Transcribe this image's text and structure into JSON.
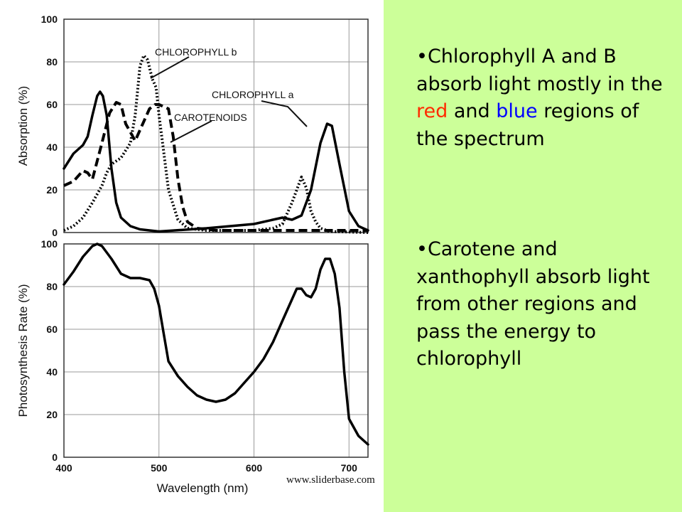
{
  "slide": {
    "bullets": [
      {
        "marker": "•",
        "parts": [
          {
            "text": "Chlorophyll A and B absorb light mostly in the ",
            "color": "#000000"
          },
          {
            "text": "red",
            "color": "#ff2a00"
          },
          {
            "text": " and ",
            "color": "#000000"
          },
          {
            "text": "blue",
            "color": "#0000ff"
          },
          {
            "text": " regions of the spectrum",
            "color": "#000000"
          }
        ]
      },
      {
        "marker": "•",
        "parts": [
          {
            "text": "Carotene and xanthophyll absorb light from other regions and pass the energy to chlorophyll",
            "color": "#000000"
          }
        ]
      }
    ],
    "footer": "www.sliderbase.com",
    "panel_color": "#ccff99"
  },
  "chart_data": [
    {
      "type": "line",
      "title": "",
      "xlabel": "",
      "ylabel": "Absorption (%)",
      "xlim": [
        400,
        720
      ],
      "ylim": [
        0,
        100
      ],
      "xticks": [],
      "yticks": [
        0,
        20,
        40,
        60,
        80,
        100
      ],
      "grid": true,
      "legend": "none",
      "series": [
        {
          "name": "CHLOROPHYLL a",
          "style": "solid",
          "points": [
            [
              400,
              30
            ],
            [
              410,
              37
            ],
            [
              420,
              41
            ],
            [
              425,
              45
            ],
            [
              430,
              55
            ],
            [
              435,
              64
            ],
            [
              438,
              66
            ],
            [
              441,
              64
            ],
            [
              445,
              55
            ],
            [
              450,
              30
            ],
            [
              455,
              14
            ],
            [
              460,
              7
            ],
            [
              470,
              3
            ],
            [
              480,
              1.5
            ],
            [
              500,
              0.5
            ],
            [
              550,
              2
            ],
            [
              600,
              4
            ],
            [
              630,
              7
            ],
            [
              640,
              6
            ],
            [
              650,
              8
            ],
            [
              660,
              20
            ],
            [
              670,
              42
            ],
            [
              677,
              51
            ],
            [
              682,
              50
            ],
            [
              690,
              32
            ],
            [
              700,
              10
            ],
            [
              710,
              3
            ],
            [
              720,
              1
            ]
          ]
        },
        {
          "name": "CHLOROPHYLL b",
          "style": "dotted",
          "points": [
            [
              400,
              1
            ],
            [
              410,
              3
            ],
            [
              420,
              7
            ],
            [
              430,
              14
            ],
            [
              440,
              22
            ],
            [
              445,
              28
            ],
            [
              450,
              32
            ],
            [
              460,
              35
            ],
            [
              470,
              42
            ],
            [
              475,
              55
            ],
            [
              480,
              78
            ],
            [
              484,
              83
            ],
            [
              488,
              81
            ],
            [
              493,
              72
            ],
            [
              497,
              68
            ],
            [
              500,
              55
            ],
            [
              505,
              38
            ],
            [
              510,
              20
            ],
            [
              520,
              6
            ],
            [
              530,
              2
            ],
            [
              550,
              1
            ],
            [
              600,
              1
            ],
            [
              620,
              2
            ],
            [
              630,
              4
            ],
            [
              640,
              14
            ],
            [
              650,
              26
            ],
            [
              655,
              21
            ],
            [
              660,
              10
            ],
            [
              665,
              5
            ],
            [
              670,
              2
            ],
            [
              680,
              0.5
            ],
            [
              720,
              0
            ]
          ]
        },
        {
          "name": "CAROTENOIDS",
          "style": "dashed",
          "points": [
            [
              400,
              22
            ],
            [
              410,
              24
            ],
            [
              420,
              29
            ],
            [
              425,
              28
            ],
            [
              430,
              25
            ],
            [
              440,
              42
            ],
            [
              448,
              56
            ],
            [
              455,
              61
            ],
            [
              460,
              60
            ],
            [
              465,
              51
            ],
            [
              470,
              47
            ],
            [
              475,
              43
            ],
            [
              480,
              48
            ],
            [
              490,
              58
            ],
            [
              496,
              60
            ],
            [
              500,
              60
            ],
            [
              505,
              59
            ],
            [
              510,
              58
            ],
            [
              515,
              45
            ],
            [
              520,
              25
            ],
            [
              525,
              12
            ],
            [
              530,
              5
            ],
            [
              540,
              2
            ],
            [
              560,
              1
            ],
            [
              600,
              1
            ],
            [
              640,
              1
            ],
            [
              680,
              1
            ],
            [
              720,
              1
            ]
          ]
        }
      ],
      "annotations": [
        "CHLOROPHYLL b",
        "CHLOROPHYLL a",
        "CAROTENOIDS"
      ]
    },
    {
      "type": "line",
      "title": "",
      "xlabel": "Wavelength (nm)",
      "ylabel": "Photosynthesis Rate (%)",
      "xlim": [
        400,
        720
      ],
      "ylim": [
        0,
        100
      ],
      "xticks": [
        400,
        500,
        600,
        700
      ],
      "yticks": [
        0,
        20,
        40,
        60,
        80,
        100
      ],
      "grid": true,
      "legend": "none",
      "series": [
        {
          "points": [
            [
              400,
              81
            ],
            [
              410,
              87
            ],
            [
              420,
              94
            ],
            [
              430,
              99
            ],
            [
              435,
              100
            ],
            [
              440,
              99
            ],
            [
              450,
              93
            ],
            [
              460,
              86
            ],
            [
              470,
              84
            ],
            [
              480,
              84
            ],
            [
              490,
              83
            ],
            [
              495,
              79
            ],
            [
              500,
              71
            ],
            [
              505,
              58
            ],
            [
              510,
              45
            ],
            [
              520,
              38
            ],
            [
              530,
              33
            ],
            [
              540,
              29
            ],
            [
              550,
              27
            ],
            [
              560,
              26
            ],
            [
              570,
              27
            ],
            [
              580,
              30
            ],
            [
              590,
              35
            ],
            [
              600,
              40
            ],
            [
              610,
              46
            ],
            [
              620,
              54
            ],
            [
              630,
              64
            ],
            [
              640,
              74
            ],
            [
              645,
              79
            ],
            [
              650,
              79
            ],
            [
              655,
              76
            ],
            [
              660,
              75
            ],
            [
              665,
              79
            ],
            [
              670,
              88
            ],
            [
              675,
              93
            ],
            [
              680,
              93
            ],
            [
              685,
              86
            ],
            [
              690,
              70
            ],
            [
              695,
              40
            ],
            [
              700,
              18
            ],
            [
              710,
              10
            ],
            [
              720,
              6
            ]
          ]
        }
      ]
    }
  ]
}
